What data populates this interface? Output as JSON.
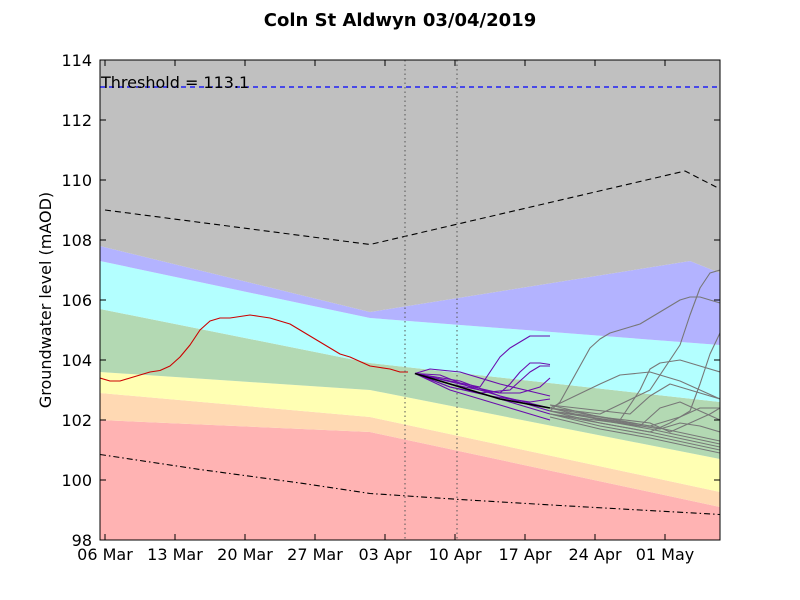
{
  "chart_data": {
    "type": "line",
    "title": "Coln St Aldwyn 03/04/2019",
    "xlabel": "",
    "ylabel": "Groundwater level (mAOD)",
    "xlim": [
      0,
      62
    ],
    "ylim": [
      98,
      114
    ],
    "x_ticks": [
      {
        "x": 0.5,
        "label": "06 Mar"
      },
      {
        "x": 7.5,
        "label": "13 Mar"
      },
      {
        "x": 14.5,
        "label": "20 Mar"
      },
      {
        "x": 21.5,
        "label": "27 Mar"
      },
      {
        "x": 28.5,
        "label": "03 Apr"
      },
      {
        "x": 35.5,
        "label": "10 Apr"
      },
      {
        "x": 42.5,
        "label": "17 Apr"
      },
      {
        "x": 49.5,
        "label": "24 Apr"
      },
      {
        "x": 56.5,
        "label": "01 May"
      }
    ],
    "y_ticks": [
      98,
      100,
      102,
      104,
      106,
      108,
      110,
      112,
      114
    ],
    "grid": false,
    "threshold": {
      "label": "Threshold = 113.1",
      "value": 113.1,
      "color": "#0000ff"
    },
    "vlines": [
      30.5,
      35.7
    ],
    "bands": {
      "x": [
        0,
        27,
        62
      ],
      "layers": [
        {
          "color": "#ffb3b3",
          "bottom": [
            98,
            98,
            98
          ],
          "top": [
            102.0,
            101.6,
            99.1
          ]
        },
        {
          "color": "#ffd9b3",
          "bottom": [
            102.0,
            101.6,
            99.1
          ],
          "top": [
            102.9,
            102.1,
            99.6
          ]
        },
        {
          "color": "#ffffb3",
          "bottom": [
            102.9,
            102.1,
            99.6
          ],
          "top": [
            103.6,
            103.0,
            100.7
          ]
        },
        {
          "color": "#b3d9b3",
          "bottom": [
            103.6,
            103.0,
            100.7
          ],
          "top": [
            105.7,
            103.9,
            102.6
          ]
        },
        {
          "color": "#b3ffff",
          "bottom": [
            105.7,
            103.9,
            102.6
          ],
          "top": [
            107.3,
            105.4,
            104.5
          ]
        },
        {
          "color": "#b3b3ff",
          "bottom": [
            107.3,
            105.4,
            104.5
          ],
          "top_x": [
            0,
            27,
            59,
            62
          ],
          "top": [
            107.8,
            105.6,
            107.3,
            106.9
          ]
        },
        {
          "color": "#c0c0c0",
          "bottom_x": [
            0,
            27,
            59,
            62
          ],
          "bottom": [
            107.8,
            105.6,
            107.3,
            106.9
          ],
          "top": [
            114,
            114,
            114
          ]
        }
      ]
    },
    "series": [
      {
        "style": "dashed",
        "color": "#000000",
        "points": [
          [
            0.5,
            109.0
          ],
          [
            27,
            107.85
          ],
          [
            58.5,
            110.3
          ],
          [
            62,
            109.7
          ]
        ]
      },
      {
        "style": "dashdot",
        "color": "#000000",
        "points": [
          [
            0,
            100.85
          ],
          [
            10,
            100.35
          ],
          [
            20,
            99.9
          ],
          [
            27,
            99.55
          ],
          [
            36,
            99.35
          ],
          [
            46,
            99.15
          ],
          [
            54,
            99.0
          ],
          [
            62,
            98.85
          ]
        ]
      },
      {
        "style": "solid",
        "color": "#cc0000",
        "points": [
          [
            0,
            103.4
          ],
          [
            1,
            103.3
          ],
          [
            2,
            103.3
          ],
          [
            3,
            103.4
          ],
          [
            4,
            103.5
          ],
          [
            5,
            103.6
          ],
          [
            6,
            103.65
          ],
          [
            7,
            103.8
          ],
          [
            8,
            104.1
          ],
          [
            9,
            104.5
          ],
          [
            10,
            105.0
          ],
          [
            11,
            105.3
          ],
          [
            12,
            105.4
          ],
          [
            13,
            105.4
          ],
          [
            14,
            105.45
          ],
          [
            15,
            105.5
          ],
          [
            16,
            105.45
          ],
          [
            17,
            105.4
          ],
          [
            18,
            105.3
          ],
          [
            19,
            105.2
          ],
          [
            20,
            105.0
          ],
          [
            21,
            104.8
          ],
          [
            22,
            104.6
          ],
          [
            23,
            104.4
          ],
          [
            24,
            104.2
          ],
          [
            25,
            104.1
          ],
          [
            26,
            103.95
          ],
          [
            27,
            103.8
          ],
          [
            28,
            103.75
          ],
          [
            29,
            103.7
          ],
          [
            30,
            103.6
          ],
          [
            30.8,
            103.6
          ]
        ]
      },
      {
        "style": "solid",
        "color": "#6a0dad",
        "points": [
          [
            31.5,
            103.55
          ],
          [
            36,
            103.3
          ],
          [
            40,
            102.8
          ],
          [
            45,
            102.3
          ]
        ]
      },
      {
        "style": "solid",
        "color": "#6a0dad",
        "points": [
          [
            31.5,
            103.55
          ],
          [
            35,
            103.0
          ],
          [
            40,
            102.5
          ],
          [
            45,
            102.0
          ]
        ]
      },
      {
        "style": "solid",
        "color": "#6a0dad",
        "points": [
          [
            31.5,
            103.55
          ],
          [
            35,
            103.2
          ],
          [
            40,
            102.7
          ],
          [
            45,
            102.2
          ]
        ]
      },
      {
        "style": "solid",
        "color": "#6a0dad",
        "points": [
          [
            31.5,
            103.55
          ],
          [
            33,
            103.7
          ],
          [
            36,
            103.6
          ],
          [
            40,
            103.2
          ],
          [
            45,
            102.8
          ]
        ]
      },
      {
        "style": "solid",
        "color": "#6a0dad",
        "points": [
          [
            31.5,
            103.55
          ],
          [
            34,
            103.5
          ],
          [
            37,
            103.1
          ],
          [
            40,
            102.8
          ],
          [
            45,
            102.4
          ]
        ]
      },
      {
        "style": "solid",
        "color": "#6a0dad",
        "points": [
          [
            31.5,
            103.55
          ],
          [
            35,
            103.2
          ],
          [
            38,
            103.0
          ],
          [
            40,
            102.9
          ],
          [
            42,
            102.9
          ],
          [
            43,
            103.0
          ],
          [
            44,
            103.1
          ],
          [
            45,
            103.4
          ]
        ]
      },
      {
        "style": "solid",
        "color": "#6a0dad",
        "points": [
          [
            31.5,
            103.55
          ],
          [
            35,
            103.1
          ],
          [
            38,
            102.9
          ],
          [
            41,
            103.0
          ],
          [
            42,
            103.3
          ],
          [
            43,
            103.6
          ],
          [
            44,
            103.8
          ],
          [
            45,
            103.8
          ]
        ]
      },
      {
        "style": "solid",
        "color": "#6a0dad",
        "points": [
          [
            31.5,
            103.55
          ],
          [
            35,
            103.3
          ],
          [
            38,
            103.1
          ],
          [
            39,
            103.6
          ],
          [
            40,
            104.1
          ],
          [
            41,
            104.4
          ],
          [
            42,
            104.6
          ],
          [
            43,
            104.8
          ],
          [
            44,
            104.8
          ],
          [
            45,
            104.8
          ]
        ]
      },
      {
        "style": "solid",
        "color": "#6a0dad",
        "points": [
          [
            31.5,
            103.55
          ],
          [
            36,
            103.2
          ],
          [
            40,
            102.9
          ],
          [
            41,
            103.2
          ],
          [
            42,
            103.6
          ],
          [
            43,
            103.9
          ],
          [
            44,
            103.9
          ],
          [
            45,
            103.85
          ]
        ]
      },
      {
        "style": "solid",
        "color": "#6a0dad",
        "points": [
          [
            31.5,
            103.55
          ],
          [
            35,
            103.1
          ],
          [
            39,
            102.8
          ],
          [
            43,
            102.6
          ],
          [
            45,
            102.7
          ]
        ]
      },
      {
        "style": "solid",
        "color": "#000000",
        "width": 1.6,
        "points": [
          [
            31.5,
            103.55
          ],
          [
            36,
            103.1
          ],
          [
            40,
            102.7
          ],
          [
            45,
            102.4
          ]
        ]
      },
      {
        "style": "solid",
        "color": "#777777",
        "points": [
          [
            45,
            102.3
          ],
          [
            50,
            101.9
          ],
          [
            55,
            101.6
          ],
          [
            62,
            101.1
          ]
        ]
      },
      {
        "style": "solid",
        "color": "#777777",
        "points": [
          [
            45,
            102.1
          ],
          [
            50,
            101.7
          ],
          [
            55,
            101.4
          ],
          [
            62,
            100.9
          ]
        ]
      },
      {
        "style": "solid",
        "color": "#777777",
        "points": [
          [
            45,
            102.2
          ],
          [
            50,
            101.8
          ],
          [
            55,
            101.5
          ],
          [
            62,
            101.0
          ]
        ]
      },
      {
        "style": "solid",
        "color": "#777777",
        "points": [
          [
            45,
            102.4
          ],
          [
            50,
            102.0
          ],
          [
            55,
            101.7
          ],
          [
            62,
            101.2
          ]
        ]
      },
      {
        "style": "solid",
        "color": "#777777",
        "points": [
          [
            45,
            102.5
          ],
          [
            50,
            102.1
          ],
          [
            55,
            101.8
          ],
          [
            62,
            101.3
          ]
        ]
      },
      {
        "style": "solid",
        "color": "#777777",
        "points": [
          [
            45,
            102.3
          ],
          [
            46,
            102.6
          ],
          [
            47,
            103.2
          ],
          [
            48,
            103.8
          ],
          [
            49,
            104.4
          ],
          [
            50,
            104.7
          ],
          [
            51,
            104.9
          ],
          [
            52,
            105.0
          ],
          [
            53,
            105.1
          ],
          [
            54,
            105.2
          ],
          [
            55,
            105.4
          ],
          [
            56,
            105.6
          ],
          [
            57,
            105.8
          ],
          [
            58,
            106.0
          ],
          [
            59,
            106.1
          ],
          [
            60,
            106.1
          ],
          [
            61,
            106.0
          ],
          [
            62,
            105.9
          ]
        ]
      },
      {
        "style": "solid",
        "color": "#777777",
        "points": [
          [
            45,
            102.4
          ],
          [
            50,
            102.2
          ],
          [
            55,
            103.0
          ],
          [
            58,
            104.5
          ],
          [
            59,
            105.5
          ],
          [
            60,
            106.4
          ],
          [
            61,
            106.9
          ],
          [
            62,
            107.0
          ]
        ]
      },
      {
        "style": "solid",
        "color": "#777777",
        "points": [
          [
            45,
            102.4
          ],
          [
            52,
            102.0
          ],
          [
            54,
            103.0
          ],
          [
            55,
            103.7
          ],
          [
            56,
            103.9
          ],
          [
            58,
            104.0
          ],
          [
            60,
            103.8
          ],
          [
            62,
            103.6
          ]
        ]
      },
      {
        "style": "solid",
        "color": "#777777",
        "points": [
          [
            45,
            102.3
          ],
          [
            55,
            101.8
          ],
          [
            58,
            102.1
          ],
          [
            60,
            102.4
          ],
          [
            62,
            102.4
          ]
        ]
      },
      {
        "style": "solid",
        "color": "#777777",
        "points": [
          [
            45,
            102.2
          ],
          [
            55,
            101.6
          ],
          [
            57,
            101.9
          ],
          [
            59,
            102.3
          ],
          [
            60,
            103.2
          ],
          [
            61,
            104.2
          ],
          [
            62,
            104.9
          ]
        ]
      },
      {
        "style": "solid",
        "color": "#777777",
        "points": [
          [
            45,
            102.5
          ],
          [
            53,
            102.2
          ],
          [
            55,
            102.8
          ],
          [
            57,
            103.2
          ],
          [
            59,
            103.0
          ],
          [
            62,
            102.7
          ]
        ]
      },
      {
        "style": "solid",
        "color": "#777777",
        "points": [
          [
            45,
            102.3
          ],
          [
            56,
            101.7
          ],
          [
            58,
            101.9
          ],
          [
            60,
            101.8
          ],
          [
            62,
            101.6
          ]
        ]
      },
      {
        "style": "solid",
        "color": "#777777",
        "points": [
          [
            45,
            102.4
          ],
          [
            50,
            103.2
          ],
          [
            52,
            103.5
          ],
          [
            55,
            103.6
          ],
          [
            58,
            103.3
          ],
          [
            60,
            103.0
          ],
          [
            62,
            102.7
          ]
        ]
      },
      {
        "style": "solid",
        "color": "#777777",
        "points": [
          [
            45,
            102.2
          ],
          [
            54,
            101.8
          ],
          [
            56,
            102.4
          ],
          [
            58,
            102.6
          ],
          [
            60,
            102.3
          ],
          [
            62,
            102.0
          ]
        ]
      },
      {
        "style": "solid",
        "color": "#777777",
        "points": [
          [
            45,
            102.3
          ],
          [
            55,
            101.9
          ],
          [
            57,
            101.6
          ],
          [
            59,
            101.9
          ],
          [
            61,
            102.2
          ],
          [
            62,
            102.4
          ]
        ]
      }
    ]
  }
}
